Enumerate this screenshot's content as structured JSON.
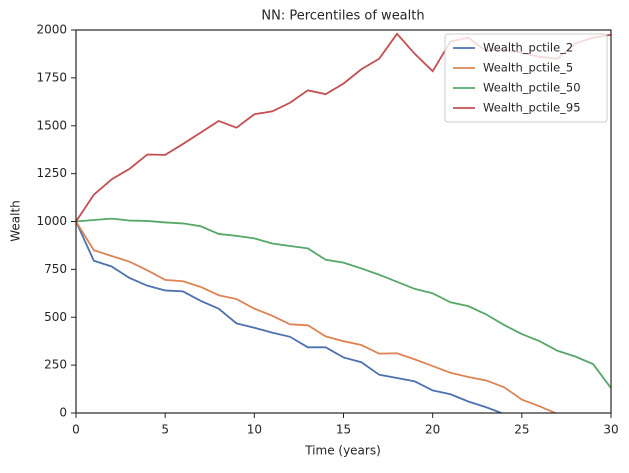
{
  "chart_data": {
    "type": "line",
    "title": "NN: Percentiles of wealth",
    "xlabel": "Time (years)",
    "ylabel": "Wealth",
    "x": [
      0,
      1,
      2,
      3,
      4,
      5,
      6,
      7,
      8,
      9,
      10,
      11,
      12,
      13,
      14,
      15,
      16,
      17,
      18,
      19,
      20,
      21,
      22,
      23,
      24,
      25,
      26,
      27,
      28,
      29,
      30
    ],
    "series": [
      {
        "name": "Wealth_pctile_2",
        "color": "#4c72b0",
        "values": [
          1000,
          795,
          765,
          705,
          665,
          640,
          635,
          585,
          545,
          468,
          445,
          420,
          398,
          343,
          343,
          290,
          265,
          200,
          183,
          165,
          118,
          98,
          60,
          30,
          -5,
          null,
          null,
          null,
          null,
          null,
          null
        ]
      },
      {
        "name": "Wealth_pctile_5",
        "color": "#dd8452",
        "values": [
          1000,
          850,
          820,
          790,
          745,
          695,
          688,
          658,
          615,
          595,
          545,
          508,
          463,
          458,
          400,
          375,
          355,
          310,
          312,
          280,
          245,
          210,
          188,
          170,
          135,
          70,
          35,
          -5,
          null,
          null,
          null
        ]
      },
      {
        "name": "Wealth_pctile_50",
        "color": "#55a868",
        "values": [
          1000,
          1008,
          1015,
          1005,
          1003,
          995,
          990,
          975,
          935,
          925,
          912,
          885,
          872,
          860,
          800,
          785,
          755,
          722,
          685,
          648,
          625,
          578,
          558,
          515,
          460,
          412,
          375,
          325,
          295,
          255,
          130
        ]
      },
      {
        "name": "Wealth_pctile_95",
        "color": "#c44e52",
        "values": [
          1000,
          1140,
          1220,
          1275,
          1350,
          1348,
          1405,
          1465,
          1525,
          1490,
          1560,
          1575,
          1620,
          1685,
          1665,
          1720,
          1795,
          1850,
          1980,
          1875,
          1785,
          1940,
          1960,
          1890,
          1900,
          1880,
          1860,
          1850,
          1930,
          1960,
          1975
        ]
      }
    ],
    "xlim": [
      0,
      30
    ],
    "xticks": [
      0,
      5,
      10,
      15,
      20,
      25,
      30
    ],
    "ylim": [
      0,
      2000
    ],
    "yticks": [
      0,
      250,
      500,
      750,
      1000,
      1250,
      1500,
      1750,
      2000
    ],
    "legend": "upper right"
  }
}
